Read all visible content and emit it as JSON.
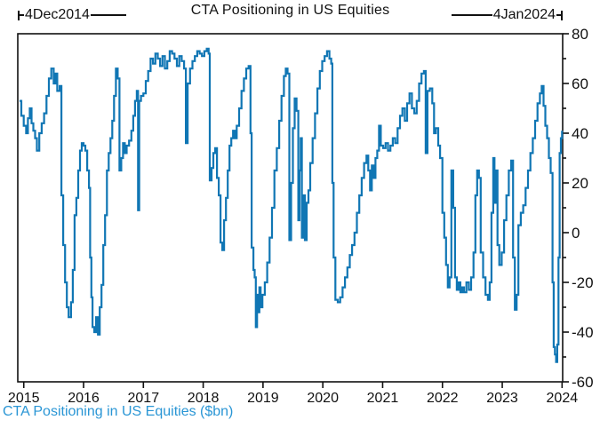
{
  "title": "CTA Positioning in US Equities",
  "annotations": {
    "start_date": "4Dec2014",
    "end_date": "4Jan2024"
  },
  "caption": "CTA Positioning in US Equities ($bn)",
  "colors": {
    "line": "#1076b4",
    "caption": "#2a96d5",
    "axis": "#111111"
  },
  "chart_data": {
    "type": "line",
    "line_style": "step",
    "title": "CTA Positioning in US Equities",
    "xlabel": "",
    "ylabel": "CTA Positioning in US Equities ($bn)",
    "xlim": [
      2014.9,
      2024.01
    ],
    "ylim": [
      -60,
      80
    ],
    "x_ticks": [
      2015,
      2016,
      2017,
      2018,
      2019,
      2020,
      2021,
      2022,
      2023,
      2024
    ],
    "y_ticks": [
      -60,
      -40,
      -20,
      0,
      20,
      40,
      60,
      80
    ],
    "y_minor_step": 10,
    "y_axis_side": "right",
    "grid": false,
    "legend": "none",
    "series": [
      {
        "name": "CTA Positioning in US Equities ($bn)",
        "points": [
          [
            2014.93,
            53
          ],
          [
            2014.96,
            47
          ],
          [
            2015.0,
            43
          ],
          [
            2015.04,
            40
          ],
          [
            2015.07,
            46
          ],
          [
            2015.1,
            50
          ],
          [
            2015.13,
            44
          ],
          [
            2015.16,
            41
          ],
          [
            2015.19,
            38
          ],
          [
            2015.22,
            33
          ],
          [
            2015.26,
            40
          ],
          [
            2015.3,
            44
          ],
          [
            2015.34,
            48
          ],
          [
            2015.38,
            55
          ],
          [
            2015.42,
            62
          ],
          [
            2015.46,
            66
          ],
          [
            2015.5,
            60
          ],
          [
            2015.53,
            64
          ],
          [
            2015.56,
            57
          ],
          [
            2015.6,
            59
          ],
          [
            2015.63,
            15
          ],
          [
            2015.66,
            -5
          ],
          [
            2015.69,
            -20
          ],
          [
            2015.72,
            -30
          ],
          [
            2015.75,
            -34
          ],
          [
            2015.79,
            -28
          ],
          [
            2015.82,
            -15
          ],
          [
            2015.85,
            7
          ],
          [
            2015.88,
            14
          ],
          [
            2015.91,
            25
          ],
          [
            2015.94,
            33
          ],
          [
            2015.97,
            36
          ],
          [
            2016.0,
            35
          ],
          [
            2016.03,
            33
          ],
          [
            2016.06,
            25
          ],
          [
            2016.09,
            18
          ],
          [
            2016.11,
            -10
          ],
          [
            2016.13,
            -26
          ],
          [
            2016.15,
            -38
          ],
          [
            2016.18,
            -40
          ],
          [
            2016.21,
            -34
          ],
          [
            2016.24,
            -41
          ],
          [
            2016.27,
            -30
          ],
          [
            2016.3,
            -21
          ],
          [
            2016.33,
            -5
          ],
          [
            2016.36,
            7
          ],
          [
            2016.39,
            25
          ],
          [
            2016.42,
            32
          ],
          [
            2016.45,
            38
          ],
          [
            2016.48,
            45
          ],
          [
            2016.51,
            55
          ],
          [
            2016.54,
            66
          ],
          [
            2016.57,
            62
          ],
          [
            2016.6,
            25
          ],
          [
            2016.63,
            30
          ],
          [
            2016.66,
            36
          ],
          [
            2016.69,
            32
          ],
          [
            2016.72,
            35
          ],
          [
            2016.76,
            37
          ],
          [
            2016.8,
            41
          ],
          [
            2016.83,
            47
          ],
          [
            2016.86,
            53
          ],
          [
            2016.89,
            57
          ],
          [
            2016.91,
            9
          ],
          [
            2016.93,
            53
          ],
          [
            2016.96,
            55
          ],
          [
            2017.0,
            56
          ],
          [
            2017.04,
            61
          ],
          [
            2017.08,
            65
          ],
          [
            2017.12,
            70
          ],
          [
            2017.16,
            68
          ],
          [
            2017.2,
            72
          ],
          [
            2017.24,
            70
          ],
          [
            2017.28,
            67
          ],
          [
            2017.32,
            71
          ],
          [
            2017.36,
            66
          ],
          [
            2017.4,
            69
          ],
          [
            2017.44,
            73
          ],
          [
            2017.48,
            72
          ],
          [
            2017.52,
            70
          ],
          [
            2017.56,
            67
          ],
          [
            2017.6,
            71
          ],
          [
            2017.64,
            69
          ],
          [
            2017.68,
            66
          ],
          [
            2017.71,
            36
          ],
          [
            2017.74,
            60
          ],
          [
            2017.78,
            66
          ],
          [
            2017.82,
            69
          ],
          [
            2017.86,
            71
          ],
          [
            2017.9,
            73
          ],
          [
            2017.94,
            72
          ],
          [
            2017.98,
            71
          ],
          [
            2018.02,
            73
          ],
          [
            2018.06,
            74
          ],
          [
            2018.09,
            72
          ],
          [
            2018.11,
            21
          ],
          [
            2018.14,
            26
          ],
          [
            2018.17,
            32
          ],
          [
            2018.2,
            34
          ],
          [
            2018.23,
            22
          ],
          [
            2018.26,
            15
          ],
          [
            2018.29,
            -4
          ],
          [
            2018.32,
            -7
          ],
          [
            2018.35,
            5
          ],
          [
            2018.38,
            14
          ],
          [
            2018.41,
            25
          ],
          [
            2018.44,
            35
          ],
          [
            2018.47,
            38
          ],
          [
            2018.5,
            41
          ],
          [
            2018.53,
            38
          ],
          [
            2018.56,
            43
          ],
          [
            2018.6,
            50
          ],
          [
            2018.64,
            57
          ],
          [
            2018.68,
            62
          ],
          [
            2018.72,
            66
          ],
          [
            2018.76,
            67
          ],
          [
            2018.79,
            40
          ],
          [
            2018.81,
            -6
          ],
          [
            2018.84,
            -15
          ],
          [
            2018.86,
            -18
          ],
          [
            2018.88,
            -38
          ],
          [
            2018.9,
            -25
          ],
          [
            2018.92,
            -32
          ],
          [
            2018.94,
            -22
          ],
          [
            2018.96,
            -30
          ],
          [
            2018.99,
            -25
          ],
          [
            2019.03,
            -20
          ],
          [
            2019.07,
            -12
          ],
          [
            2019.11,
            -2
          ],
          [
            2019.15,
            10
          ],
          [
            2019.19,
            25
          ],
          [
            2019.23,
            34
          ],
          [
            2019.27,
            45
          ],
          [
            2019.31,
            55
          ],
          [
            2019.35,
            63
          ],
          [
            2019.38,
            66
          ],
          [
            2019.41,
            64
          ],
          [
            2019.44,
            -3
          ],
          [
            2019.47,
            20
          ],
          [
            2019.5,
            42
          ],
          [
            2019.53,
            54
          ],
          [
            2019.56,
            49
          ],
          [
            2019.59,
            5
          ],
          [
            2019.61,
            25
          ],
          [
            2019.63,
            38
          ],
          [
            2019.65,
            -2
          ],
          [
            2019.68,
            15
          ],
          [
            2019.7,
            -3
          ],
          [
            2019.73,
            12
          ],
          [
            2019.76,
            17
          ],
          [
            2019.79,
            28
          ],
          [
            2019.83,
            38
          ],
          [
            2019.87,
            48
          ],
          [
            2019.91,
            58
          ],
          [
            2019.95,
            65
          ],
          [
            2019.99,
            69
          ],
          [
            2020.03,
            71
          ],
          [
            2020.07,
            73
          ],
          [
            2020.11,
            70
          ],
          [
            2020.14,
            68
          ],
          [
            2020.16,
            20
          ],
          [
            2020.18,
            -10
          ],
          [
            2020.21,
            -27
          ],
          [
            2020.25,
            -28
          ],
          [
            2020.29,
            -26
          ],
          [
            2020.33,
            -22
          ],
          [
            2020.37,
            -18
          ],
          [
            2020.41,
            -14
          ],
          [
            2020.45,
            -9
          ],
          [
            2020.49,
            -5
          ],
          [
            2020.53,
            0
          ],
          [
            2020.57,
            8
          ],
          [
            2020.61,
            15
          ],
          [
            2020.65,
            22
          ],
          [
            2020.69,
            28
          ],
          [
            2020.73,
            31
          ],
          [
            2020.76,
            25
          ],
          [
            2020.79,
            17
          ],
          [
            2020.82,
            27
          ],
          [
            2020.85,
            22
          ],
          [
            2020.88,
            30
          ],
          [
            2020.91,
            33
          ],
          [
            2020.94,
            43
          ],
          [
            2020.97,
            35
          ],
          [
            2021.01,
            34
          ],
          [
            2021.05,
            36
          ],
          [
            2021.09,
            33
          ],
          [
            2021.13,
            35
          ],
          [
            2021.17,
            38
          ],
          [
            2021.21,
            36
          ],
          [
            2021.25,
            42
          ],
          [
            2021.29,
            47
          ],
          [
            2021.33,
            50
          ],
          [
            2021.37,
            45
          ],
          [
            2021.41,
            52
          ],
          [
            2021.45,
            56
          ],
          [
            2021.49,
            50
          ],
          [
            2021.53,
            48
          ],
          [
            2021.57,
            53
          ],
          [
            2021.61,
            60
          ],
          [
            2021.65,
            64
          ],
          [
            2021.69,
            65
          ],
          [
            2021.72,
            32
          ],
          [
            2021.75,
            57
          ],
          [
            2021.79,
            58
          ],
          [
            2021.83,
            52
          ],
          [
            2021.86,
            40
          ],
          [
            2021.89,
            42
          ],
          [
            2021.93,
            35
          ],
          [
            2021.96,
            30
          ],
          [
            2022.0,
            8
          ],
          [
            2022.03,
            -2
          ],
          [
            2022.06,
            -13
          ],
          [
            2022.09,
            -22
          ],
          [
            2022.12,
            -18
          ],
          [
            2022.15,
            25
          ],
          [
            2022.18,
            10
          ],
          [
            2022.21,
            -18
          ],
          [
            2022.24,
            -23
          ],
          [
            2022.27,
            -20
          ],
          [
            2022.3,
            -24
          ],
          [
            2022.33,
            -22
          ],
          [
            2022.36,
            -24
          ],
          [
            2022.4,
            -20
          ],
          [
            2022.44,
            -23
          ],
          [
            2022.48,
            -18
          ],
          [
            2022.52,
            -8
          ],
          [
            2022.55,
            15
          ],
          [
            2022.58,
            25
          ],
          [
            2022.61,
            22
          ],
          [
            2022.64,
            -8
          ],
          [
            2022.68,
            -18
          ],
          [
            2022.72,
            -25
          ],
          [
            2022.76,
            -27
          ],
          [
            2022.79,
            -20
          ],
          [
            2022.82,
            8
          ],
          [
            2022.85,
            30
          ],
          [
            2022.87,
            12
          ],
          [
            2022.89,
            25
          ],
          [
            2022.92,
            -5
          ],
          [
            2022.95,
            -13
          ],
          [
            2022.99,
            -8
          ],
          [
            2023.03,
            5
          ],
          [
            2023.07,
            15
          ],
          [
            2023.11,
            25
          ],
          [
            2023.15,
            29
          ],
          [
            2023.18,
            -10
          ],
          [
            2023.21,
            -31
          ],
          [
            2023.24,
            -25
          ],
          [
            2023.27,
            3
          ],
          [
            2023.31,
            8
          ],
          [
            2023.35,
            11
          ],
          [
            2023.39,
            18
          ],
          [
            2023.43,
            25
          ],
          [
            2023.47,
            32
          ],
          [
            2023.51,
            38
          ],
          [
            2023.55,
            45
          ],
          [
            2023.59,
            52
          ],
          [
            2023.63,
            56
          ],
          [
            2023.66,
            59
          ],
          [
            2023.69,
            51
          ],
          [
            2023.72,
            43
          ],
          [
            2023.75,
            38
          ],
          [
            2023.78,
            30
          ],
          [
            2023.81,
            24
          ],
          [
            2023.84,
            -20
          ],
          [
            2023.86,
            -46
          ],
          [
            2023.88,
            -49
          ],
          [
            2023.9,
            -52
          ],
          [
            2023.92,
            -45
          ],
          [
            2023.94,
            -10
          ],
          [
            2023.96,
            32
          ],
          [
            2023.98,
            38
          ],
          [
            2024.0,
            41
          ]
        ]
      }
    ]
  }
}
